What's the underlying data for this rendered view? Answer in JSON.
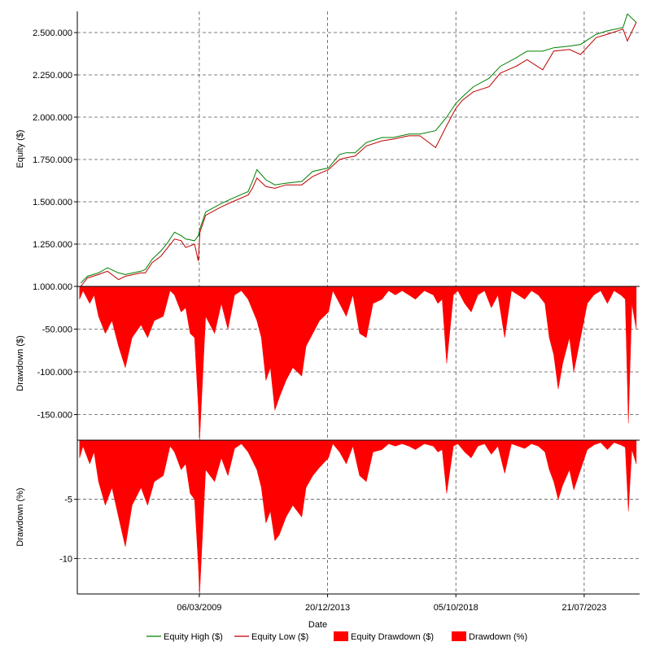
{
  "chart_data": [
    {
      "type": "line",
      "ylabel": "Equity ($)",
      "ylim": [
        1000000,
        2625000
      ],
      "yticks": [
        1000000,
        1250000,
        1500000,
        1750000,
        2000000,
        2250000,
        2500000
      ],
      "ytick_labels": [
        "1.000.000",
        "1.250.000",
        "1.500.000",
        "1.750.000",
        "2.000.000",
        "2.250.000",
        "2.500.000"
      ],
      "grid": true,
      "series": [
        {
          "name": "Equity High ($)",
          "color": "#008000",
          "x": [
            "2004-10-01",
            "2005-01-01",
            "2005-06-01",
            "2005-10-01",
            "2006-03-01",
            "2006-06-01",
            "2007-01-01",
            "2007-03-01",
            "2007-06-01",
            "2007-10-01",
            "2008-01-01",
            "2008-04-01",
            "2008-07-01",
            "2008-09-01",
            "2009-01-01",
            "2009-02-20",
            "2009-03-15",
            "2009-06-01",
            "2010-01-01",
            "2010-06-01",
            "2011-01-01",
            "2011-03-01",
            "2011-05-01",
            "2011-09-01",
            "2012-01-01",
            "2012-06-01",
            "2013-01-01",
            "2013-06-01",
            "2014-01-01",
            "2014-06-01",
            "2014-09-01",
            "2015-01-01",
            "2015-06-01",
            "2016-01-01",
            "2016-06-01",
            "2017-01-01",
            "2017-06-01",
            "2018-01-01",
            "2018-06-01",
            "2018-10-01",
            "2019-01-01",
            "2019-06-01",
            "2020-01-01",
            "2020-06-01",
            "2021-01-01",
            "2021-06-01",
            "2022-01-01",
            "2022-06-01",
            "2023-01-01",
            "2023-06-01",
            "2024-01-01",
            "2024-06-01",
            "2025-01-01",
            "2025-03-01",
            "2025-07-01"
          ],
          "values": [
            1020000,
            1060000,
            1080000,
            1110000,
            1080000,
            1070000,
            1090000,
            1100000,
            1160000,
            1210000,
            1260000,
            1320000,
            1300000,
            1280000,
            1270000,
            1300000,
            1340000,
            1440000,
            1490000,
            1520000,
            1560000,
            1620000,
            1690000,
            1630000,
            1600000,
            1610000,
            1620000,
            1680000,
            1700000,
            1780000,
            1790000,
            1790000,
            1850000,
            1880000,
            1880000,
            1900000,
            1900000,
            1920000,
            2000000,
            2080000,
            2120000,
            2180000,
            2230000,
            2300000,
            2350000,
            2390000,
            2390000,
            2410000,
            2420000,
            2430000,
            2490000,
            2510000,
            2530000,
            2610000,
            2560000
          ]
        },
        {
          "name": "Equity Low ($)",
          "color": "#c00000",
          "x": [
            "2004-10-01",
            "2005-01-01",
            "2005-06-01",
            "2005-10-01",
            "2006-03-01",
            "2006-06-01",
            "2007-01-01",
            "2007-03-01",
            "2007-06-01",
            "2007-10-01",
            "2008-01-01",
            "2008-04-01",
            "2008-07-01",
            "2008-09-01",
            "2009-01-01",
            "2009-02-20",
            "2009-03-15",
            "2009-06-01",
            "2010-01-01",
            "2010-06-01",
            "2011-01-01",
            "2011-03-01",
            "2011-05-01",
            "2011-09-01",
            "2012-01-01",
            "2012-06-01",
            "2013-01-01",
            "2013-06-01",
            "2014-01-01",
            "2014-06-01",
            "2014-09-01",
            "2015-01-01",
            "2015-06-01",
            "2016-01-01",
            "2016-06-01",
            "2017-01-01",
            "2017-06-01",
            "2018-01-01",
            "2018-06-01",
            "2018-10-01",
            "2019-01-01",
            "2019-06-01",
            "2020-01-01",
            "2020-06-01",
            "2021-01-01",
            "2021-06-01",
            "2022-01-01",
            "2022-06-01",
            "2023-01-01",
            "2023-06-01",
            "2024-01-01",
            "2024-06-01",
            "2025-01-01",
            "2025-03-01",
            "2025-07-01"
          ],
          "values": [
            1000000,
            1050000,
            1070000,
            1090000,
            1040000,
            1060000,
            1080000,
            1080000,
            1140000,
            1180000,
            1230000,
            1280000,
            1270000,
            1230000,
            1250000,
            1150000,
            1320000,
            1420000,
            1470000,
            1500000,
            1540000,
            1580000,
            1640000,
            1590000,
            1580000,
            1600000,
            1600000,
            1650000,
            1690000,
            1750000,
            1760000,
            1770000,
            1830000,
            1860000,
            1870000,
            1890000,
            1890000,
            1820000,
            1950000,
            2050000,
            2100000,
            2150000,
            2180000,
            2260000,
            2300000,
            2340000,
            2280000,
            2390000,
            2400000,
            2370000,
            2470000,
            2490000,
            2520000,
            2450000,
            2560000
          ]
        }
      ]
    },
    {
      "type": "area",
      "ylabel": "Drawdown ($)",
      "ylim": [
        -180000,
        0
      ],
      "yticks": [
        -50000,
        -100000,
        -150000
      ],
      "ytick_labels": [
        "-50.000",
        "-100.000",
        "-150.000"
      ],
      "grid": true,
      "series": [
        {
          "name": "Equity Drawdown ($)",
          "color": "#ff0000",
          "x": [
            "2004-09-15",
            "2004-11-01",
            "2005-02-01",
            "2005-04-01",
            "2005-06-01",
            "2005-09-01",
            "2005-12-01",
            "2006-03-01",
            "2006-06-01",
            "2006-09-01",
            "2007-01-01",
            "2007-04-01",
            "2007-07-01",
            "2007-11-01",
            "2008-02-01",
            "2008-04-01",
            "2008-07-01",
            "2008-09-01",
            "2008-11-01",
            "2009-01-01",
            "2009-02-20",
            "2009-03-10",
            "2009-06-01",
            "2009-10-01",
            "2010-01-01",
            "2010-04-01",
            "2010-07-01",
            "2010-10-01",
            "2011-01-01",
            "2011-05-01",
            "2011-07-01",
            "2011-09-01",
            "2011-11-01",
            "2012-01-01",
            "2012-03-01",
            "2012-06-01",
            "2012-09-01",
            "2013-01-01",
            "2013-03-01",
            "2013-06-01",
            "2013-09-01",
            "2014-01-01",
            "2014-03-01",
            "2014-06-01",
            "2014-09-01",
            "2014-12-01",
            "2015-03-01",
            "2015-06-01",
            "2015-09-01",
            "2016-01-01",
            "2016-04-01",
            "2016-07-01",
            "2016-10-01",
            "2017-01-01",
            "2017-04-01",
            "2017-08-01",
            "2017-12-01",
            "2018-02-01",
            "2018-04-01",
            "2018-06-01",
            "2018-09-01",
            "2018-11-01",
            "2019-02-01",
            "2019-05-01",
            "2019-08-01",
            "2019-11-01",
            "2020-02-01",
            "2020-05-01",
            "2020-08-01",
            "2020-11-01",
            "2021-02-01",
            "2021-05-01",
            "2021-08-01",
            "2021-11-01",
            "2022-02-01",
            "2022-04-01",
            "2022-06-01",
            "2022-08-01",
            "2022-10-01",
            "2023-01-01",
            "2023-03-01",
            "2023-06-01",
            "2023-09-01",
            "2023-12-01",
            "2024-03-01",
            "2024-06-01",
            "2024-09-01",
            "2024-12-01",
            "2025-02-01",
            "2025-03-15",
            "2025-05-01",
            "2025-07-01"
          ],
          "values": [
            -15000,
            -5000,
            -20000,
            -10000,
            -35000,
            -55000,
            -40000,
            -70000,
            -95000,
            -60000,
            -45000,
            -60000,
            -40000,
            -35000,
            -5000,
            -10000,
            -30000,
            -25000,
            -55000,
            -60000,
            -140000,
            -180000,
            -35000,
            -55000,
            -20000,
            -50000,
            -10000,
            -5000,
            -15000,
            -40000,
            -60000,
            -110000,
            -95000,
            -145000,
            -130000,
            -110000,
            -95000,
            -105000,
            -70000,
            -55000,
            -40000,
            -30000,
            -5000,
            -20000,
            -35000,
            -10000,
            -55000,
            -60000,
            -20000,
            -15000,
            -5000,
            -10000,
            -5000,
            -10000,
            -15000,
            -5000,
            -10000,
            -20000,
            -15000,
            -90000,
            -10000,
            -5000,
            -20000,
            -30000,
            -10000,
            -5000,
            -25000,
            -10000,
            -60000,
            -5000,
            -10000,
            -15000,
            -5000,
            -10000,
            -20000,
            -60000,
            -80000,
            -120000,
            -90000,
            -60000,
            -100000,
            -60000,
            -20000,
            -10000,
            -5000,
            -20000,
            -5000,
            -10000,
            -15000,
            -160000,
            -20000,
            -50000
          ]
        }
      ]
    },
    {
      "type": "area",
      "xlabel": "Date",
      "ylabel": "Drawdown (%)",
      "ylim": [
        -13,
        0
      ],
      "yticks": [
        -5,
        -10
      ],
      "ytick_labels": [
        "-5",
        "-10"
      ],
      "grid": true,
      "xticks": [
        "2009-03-06",
        "2013-12-20",
        "2018-10-05",
        "2023-07-21"
      ],
      "xtick_labels": [
        "06/03/2009",
        "20/12/2013",
        "05/10/2018",
        "21/07/2023"
      ],
      "xlim": [
        "2004-08-15",
        "2025-08-15"
      ],
      "series": [
        {
          "name": "Drawdown (%)",
          "color": "#ff0000",
          "x": [
            "2004-09-15",
            "2004-11-01",
            "2005-02-01",
            "2005-04-01",
            "2005-06-01",
            "2005-09-01",
            "2005-12-01",
            "2006-03-01",
            "2006-06-01",
            "2006-09-01",
            "2007-01-01",
            "2007-04-01",
            "2007-07-01",
            "2007-11-01",
            "2008-02-01",
            "2008-04-01",
            "2008-07-01",
            "2008-09-01",
            "2008-11-01",
            "2009-01-01",
            "2009-02-20",
            "2009-03-10",
            "2009-06-01",
            "2009-10-01",
            "2010-01-01",
            "2010-04-01",
            "2010-07-01",
            "2010-10-01",
            "2011-01-01",
            "2011-05-01",
            "2011-07-01",
            "2011-09-01",
            "2011-11-01",
            "2012-01-01",
            "2012-03-01",
            "2012-06-01",
            "2012-09-01",
            "2013-01-01",
            "2013-03-01",
            "2013-06-01",
            "2013-09-01",
            "2014-01-01",
            "2014-03-01",
            "2014-06-01",
            "2014-09-01",
            "2014-12-01",
            "2015-03-01",
            "2015-06-01",
            "2015-09-01",
            "2016-01-01",
            "2016-04-01",
            "2016-07-01",
            "2016-10-01",
            "2017-01-01",
            "2017-04-01",
            "2017-08-01",
            "2017-12-01",
            "2018-02-01",
            "2018-04-01",
            "2018-06-01",
            "2018-09-01",
            "2018-11-01",
            "2019-02-01",
            "2019-05-01",
            "2019-08-01",
            "2019-11-01",
            "2020-02-01",
            "2020-05-01",
            "2020-08-01",
            "2020-11-01",
            "2021-02-01",
            "2021-05-01",
            "2021-08-01",
            "2021-11-01",
            "2022-02-01",
            "2022-04-01",
            "2022-06-01",
            "2022-08-01",
            "2022-10-01",
            "2023-01-01",
            "2023-03-01",
            "2023-06-01",
            "2023-09-01",
            "2023-12-01",
            "2024-03-01",
            "2024-06-01",
            "2024-09-01",
            "2024-12-01",
            "2025-02-01",
            "2025-03-15",
            "2025-05-01",
            "2025-07-01"
          ],
          "values": [
            -1.5,
            -0.5,
            -2.0,
            -1.0,
            -3.5,
            -5.5,
            -4.0,
            -6.5,
            -9.0,
            -5.5,
            -4.0,
            -5.5,
            -3.5,
            -3.0,
            -0.5,
            -1.0,
            -2.5,
            -2.0,
            -4.5,
            -5.0,
            -10.5,
            -13.0,
            -2.5,
            -3.5,
            -1.5,
            -3.0,
            -0.7,
            -0.3,
            -1.0,
            -2.5,
            -4.0,
            -7.0,
            -6.0,
            -8.5,
            -8.0,
            -6.5,
            -5.5,
            -6.5,
            -4.0,
            -3.0,
            -2.3,
            -1.5,
            -0.3,
            -1.0,
            -2.0,
            -0.5,
            -3.0,
            -3.5,
            -1.0,
            -0.8,
            -0.3,
            -0.5,
            -0.3,
            -0.5,
            -0.8,
            -0.3,
            -0.5,
            -1.0,
            -0.8,
            -4.5,
            -0.5,
            -0.3,
            -1.0,
            -1.5,
            -0.5,
            -0.3,
            -1.2,
            -0.5,
            -2.8,
            -0.3,
            -0.5,
            -0.7,
            -0.3,
            -0.5,
            -1.0,
            -2.5,
            -3.5,
            -5.0,
            -3.8,
            -2.5,
            -4.2,
            -2.5,
            -0.8,
            -0.4,
            -0.2,
            -0.8,
            -0.2,
            -0.4,
            -0.6,
            -6.0,
            -0.8,
            -2.0
          ]
        }
      ]
    }
  ],
  "legend": {
    "placement": "bottom",
    "items": [
      {
        "label": "Equity High ($)",
        "swatch": "line",
        "color": "#008000"
      },
      {
        "label": "Equity Low ($)",
        "swatch": "line",
        "color": "#c00000"
      },
      {
        "label": "Equity Drawdown ($)",
        "swatch": "box",
        "color": "#ff0000"
      },
      {
        "label": "Drawdown (%)",
        "swatch": "box",
        "color": "#ff0000"
      }
    ]
  }
}
